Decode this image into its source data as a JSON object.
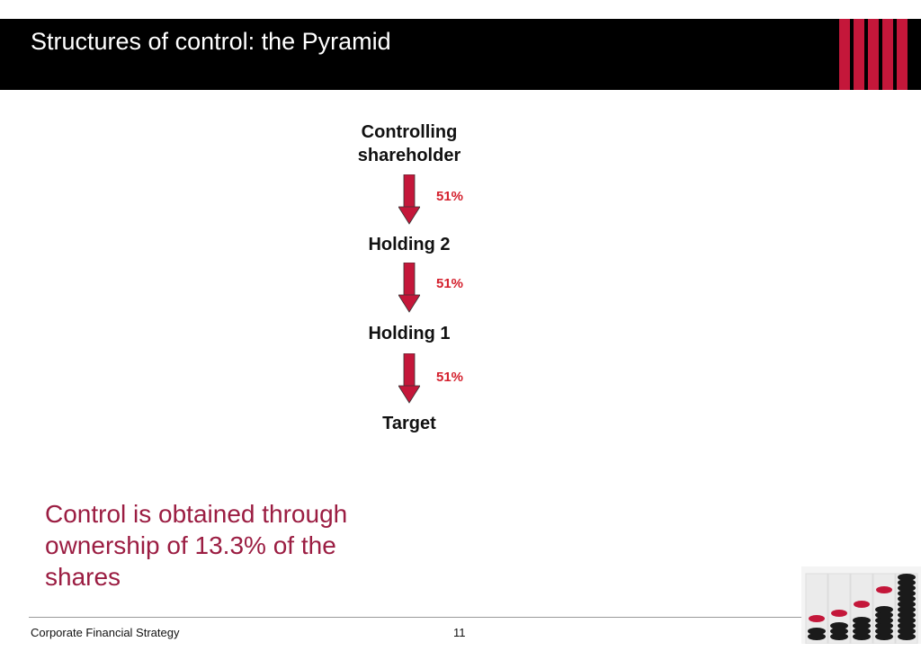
{
  "slide": {
    "title": "Structures of control: the Pyramid",
    "accent_color": "#c4173a",
    "note_color": "#9b1d42",
    "percent_color": "#d41f2c"
  },
  "diagram": {
    "nodes": [
      {
        "id": "controlling-shareholder",
        "label_line1": "Controlling",
        "label_line2": "shareholder"
      },
      {
        "id": "holding-2",
        "label": "Holding 2"
      },
      {
        "id": "holding-1",
        "label": "Holding 1"
      },
      {
        "id": "target",
        "label": "Target"
      }
    ],
    "edges": [
      {
        "from": "controlling-shareholder",
        "to": "holding-2",
        "label": "51%"
      },
      {
        "from": "holding-2",
        "to": "holding-1",
        "label": "51%"
      },
      {
        "from": "holding-1",
        "to": "target",
        "label": "51%"
      }
    ]
  },
  "note": {
    "line1": "Control is obtained through",
    "line2": "ownership of 13.3% of the",
    "line3": "shares"
  },
  "footer": {
    "course": "Corporate Financial Strategy",
    "page_number": "11"
  }
}
